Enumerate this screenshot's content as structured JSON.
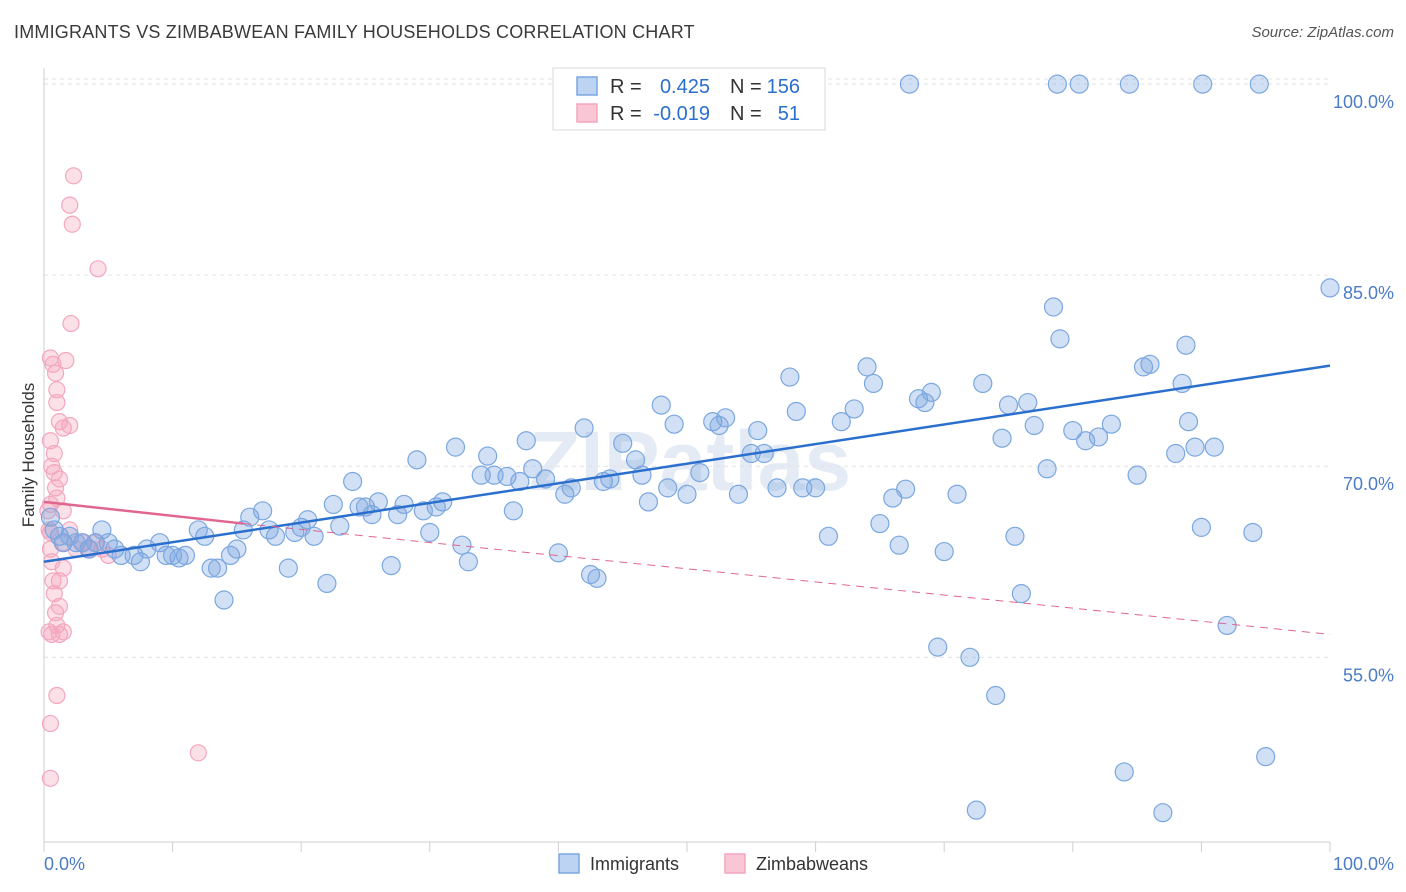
{
  "title": "IMMIGRANTS VS ZIMBABWEAN FAMILY HOUSEHOLDS CORRELATION CHART",
  "source": "Source: ZipAtlas.com",
  "watermark": "ZIPatlas",
  "colors": {
    "blue": "#7ba7e0",
    "blue_line": "#2b6fce",
    "pink": "#f4a6bd",
    "pink_line": "#e06690",
    "axis_text": "#4a7cc7"
  },
  "legend": {
    "rows": [
      {
        "r_label": "R =",
        "r_value": "0.425",
        "n_label": "N =",
        "n_value": "156"
      },
      {
        "r_label": "R =",
        "r_value": "-0.019",
        "n_label": "N =",
        "n_value": "51"
      }
    ]
  },
  "bottom_legend": {
    "blue_label": "Immigrants",
    "pink_label": "Zimbabweans"
  },
  "chart_data": {
    "type": "scatter",
    "title": "IMMIGRANTS VS ZIMBABWEAN FAMILY HOUSEHOLDS CORRELATION CHART",
    "xlabel": "",
    "ylabel": "Family Households",
    "xlim": [
      0,
      100
    ],
    "ylim": [
      40.5,
      101.5
    ],
    "x_tick_labels": [
      "0.0%",
      "100.0%"
    ],
    "y_ticks": [
      55,
      70,
      85,
      100
    ],
    "y_tick_labels": [
      "55.0%",
      "70.0%",
      "85.0%",
      "100.0%"
    ],
    "series": [
      {
        "name": "Immigrants",
        "R": 0.425,
        "N": 156,
        "trend": {
          "x": [
            0,
            100
          ],
          "y": [
            62.5,
            77.9
          ]
        },
        "points": [
          [
            0.5,
            66
          ],
          [
            0.8,
            65
          ],
          [
            1.2,
            64.5
          ],
          [
            1.5,
            64
          ],
          [
            2,
            64.5
          ],
          [
            2.5,
            64
          ],
          [
            3,
            64
          ],
          [
            3.5,
            63.5
          ],
          [
            4,
            64
          ],
          [
            4.5,
            65
          ],
          [
            5,
            64
          ],
          [
            5.5,
            63.5
          ],
          [
            6,
            63
          ],
          [
            7,
            63
          ],
          [
            7.5,
            62.5
          ],
          [
            8,
            63.5
          ],
          [
            9,
            64
          ],
          [
            9.5,
            63
          ],
          [
            10,
            63
          ],
          [
            10.5,
            62.8
          ],
          [
            11,
            63
          ],
          [
            12,
            65
          ],
          [
            12.5,
            64.5
          ],
          [
            13,
            62
          ],
          [
            13.5,
            62
          ],
          [
            14,
            59.5
          ],
          [
            14.5,
            63
          ],
          [
            15,
            63.5
          ],
          [
            15.5,
            65
          ],
          [
            16,
            66
          ],
          [
            17,
            66.5
          ],
          [
            17.5,
            65
          ],
          [
            18,
            64.5
          ],
          [
            19,
            62
          ],
          [
            19.5,
            64.8
          ],
          [
            20,
            65.2
          ],
          [
            20.5,
            65.8
          ],
          [
            21,
            64.5
          ],
          [
            22,
            60.8
          ],
          [
            22.5,
            67
          ],
          [
            23,
            65.3
          ],
          [
            24,
            68.8
          ],
          [
            24.5,
            66.8
          ],
          [
            25,
            66.8
          ],
          [
            25.5,
            66.2
          ],
          [
            26,
            67.2
          ],
          [
            27,
            62.2
          ],
          [
            27.5,
            66.2
          ],
          [
            28,
            67
          ],
          [
            29,
            70.5
          ],
          [
            29.5,
            66.5
          ],
          [
            30,
            64.8
          ],
          [
            30.5,
            66.8
          ],
          [
            31,
            67.2
          ],
          [
            32,
            71.5
          ],
          [
            32.5,
            63.8
          ],
          [
            33,
            62.5
          ],
          [
            34,
            69.3
          ],
          [
            34.5,
            70.8
          ],
          [
            35,
            69.3
          ],
          [
            36,
            69.2
          ],
          [
            36.5,
            66.5
          ],
          [
            37,
            68.8
          ],
          [
            37.5,
            72
          ],
          [
            38,
            69.8
          ],
          [
            39,
            69
          ],
          [
            40,
            63.2
          ],
          [
            40.5,
            67.8
          ],
          [
            41,
            68.3
          ],
          [
            42,
            73
          ],
          [
            42.5,
            61.5
          ],
          [
            43,
            61.2
          ],
          [
            43.5,
            68.8
          ],
          [
            44,
            69
          ],
          [
            45,
            71.8
          ],
          [
            46,
            70.5
          ],
          [
            46.5,
            69.3
          ],
          [
            47,
            67.2
          ],
          [
            48,
            74.8
          ],
          [
            48.5,
            68.3
          ],
          [
            49,
            73.3
          ],
          [
            50,
            67.8
          ],
          [
            51,
            69.5
          ],
          [
            52,
            73.5
          ],
          [
            52.5,
            73.2
          ],
          [
            53,
            73.8
          ],
          [
            54,
            67.8
          ],
          [
            55,
            71
          ],
          [
            55.5,
            72.8
          ],
          [
            56,
            71
          ],
          [
            57,
            68.3
          ],
          [
            58,
            77
          ],
          [
            58.5,
            74.3
          ],
          [
            59,
            68.3
          ],
          [
            60,
            68.3
          ],
          [
            61,
            64.5
          ],
          [
            62,
            73.5
          ],
          [
            63,
            74.5
          ],
          [
            64,
            77.8
          ],
          [
            64.5,
            76.5
          ],
          [
            65,
            65.5
          ],
          [
            66,
            67.5
          ],
          [
            66.5,
            63.8
          ],
          [
            67,
            68.2
          ],
          [
            68,
            75.3
          ],
          [
            68.5,
            75
          ],
          [
            69,
            75.8
          ],
          [
            69.5,
            55.8
          ],
          [
            70,
            63.3
          ],
          [
            71,
            67.8
          ],
          [
            72,
            55
          ],
          [
            72.5,
            43
          ],
          [
            73,
            76.5
          ],
          [
            74,
            52
          ],
          [
            74.5,
            72.2
          ],
          [
            75,
            74.8
          ],
          [
            75.5,
            64.5
          ],
          [
            76,
            60
          ],
          [
            76.5,
            75
          ],
          [
            77,
            73.2
          ],
          [
            78,
            69.8
          ],
          [
            78.5,
            82.5
          ],
          [
            79,
            80
          ],
          [
            80,
            72.8
          ],
          [
            81,
            72
          ],
          [
            82,
            72.3
          ],
          [
            83,
            73.3
          ],
          [
            84,
            46
          ],
          [
            85,
            69.3
          ],
          [
            85.5,
            77.8
          ],
          [
            86,
            78
          ],
          [
            87,
            42.8
          ],
          [
            88,
            71
          ],
          [
            88.5,
            76.5
          ],
          [
            89,
            73.5
          ],
          [
            89.5,
            71.5
          ],
          [
            90,
            65.2
          ],
          [
            91,
            71.5
          ],
          [
            92,
            57.5
          ],
          [
            94,
            64.8
          ],
          [
            95,
            47.2
          ],
          [
            100,
            84
          ],
          [
            88.8,
            79.5
          ],
          [
            67.3,
            100
          ],
          [
            78.8,
            100
          ],
          [
            80.5,
            100
          ],
          [
            84.4,
            100
          ],
          [
            90.1,
            100
          ],
          [
            94.5,
            100
          ]
        ]
      },
      {
        "name": "Zimbabweans",
        "R": -0.019,
        "N": 51,
        "trend": {
          "x": [
            0,
            15.5
          ],
          "y": [
            67.2,
            65.5
          ]
        },
        "trend_extension": {
          "x": [
            15.5,
            100
          ],
          "y": [
            65.5,
            56.8
          ]
        },
        "points": [
          [
            0.3,
            66.5
          ],
          [
            0.4,
            65
          ],
          [
            0.5,
            64.8
          ],
          [
            0.5,
            63.5
          ],
          [
            0.6,
            62.5
          ],
          [
            0.7,
            61
          ],
          [
            0.8,
            60
          ],
          [
            0.9,
            58.5
          ],
          [
            1,
            57.5
          ],
          [
            0.4,
            57
          ],
          [
            0.6,
            56.8
          ],
          [
            1.2,
            56.8
          ],
          [
            1.5,
            57
          ],
          [
            0.5,
            49.8
          ],
          [
            0.5,
            45.5
          ],
          [
            1,
            52
          ],
          [
            0.5,
            72
          ],
          [
            0.6,
            70
          ],
          [
            0.8,
            69.5
          ],
          [
            0.9,
            68.3
          ],
          [
            1,
            67.5
          ],
          [
            0.5,
            67
          ],
          [
            0.5,
            78.5
          ],
          [
            0.7,
            78
          ],
          [
            0.9,
            77.3
          ],
          [
            1,
            76
          ],
          [
            1,
            75
          ],
          [
            1.2,
            73.5
          ],
          [
            1.5,
            73
          ],
          [
            2,
            73.2
          ],
          [
            0.8,
            71
          ],
          [
            1.2,
            69
          ],
          [
            1.5,
            66.5
          ],
          [
            1.5,
            64
          ],
          [
            2,
            65
          ],
          [
            2.5,
            63.5
          ],
          [
            3,
            64
          ],
          [
            3.5,
            63.5
          ],
          [
            4,
            64
          ],
          [
            4.5,
            63.5
          ],
          [
            5,
            63
          ],
          [
            1.5,
            62
          ],
          [
            1.2,
            61
          ],
          [
            2,
            90.5
          ],
          [
            2.2,
            89
          ],
          [
            2.3,
            92.8
          ],
          [
            4.2,
            85.5
          ],
          [
            2.1,
            81.2
          ],
          [
            1.7,
            78.3
          ],
          [
            12,
            47.5
          ],
          [
            1.2,
            59
          ]
        ]
      }
    ]
  }
}
